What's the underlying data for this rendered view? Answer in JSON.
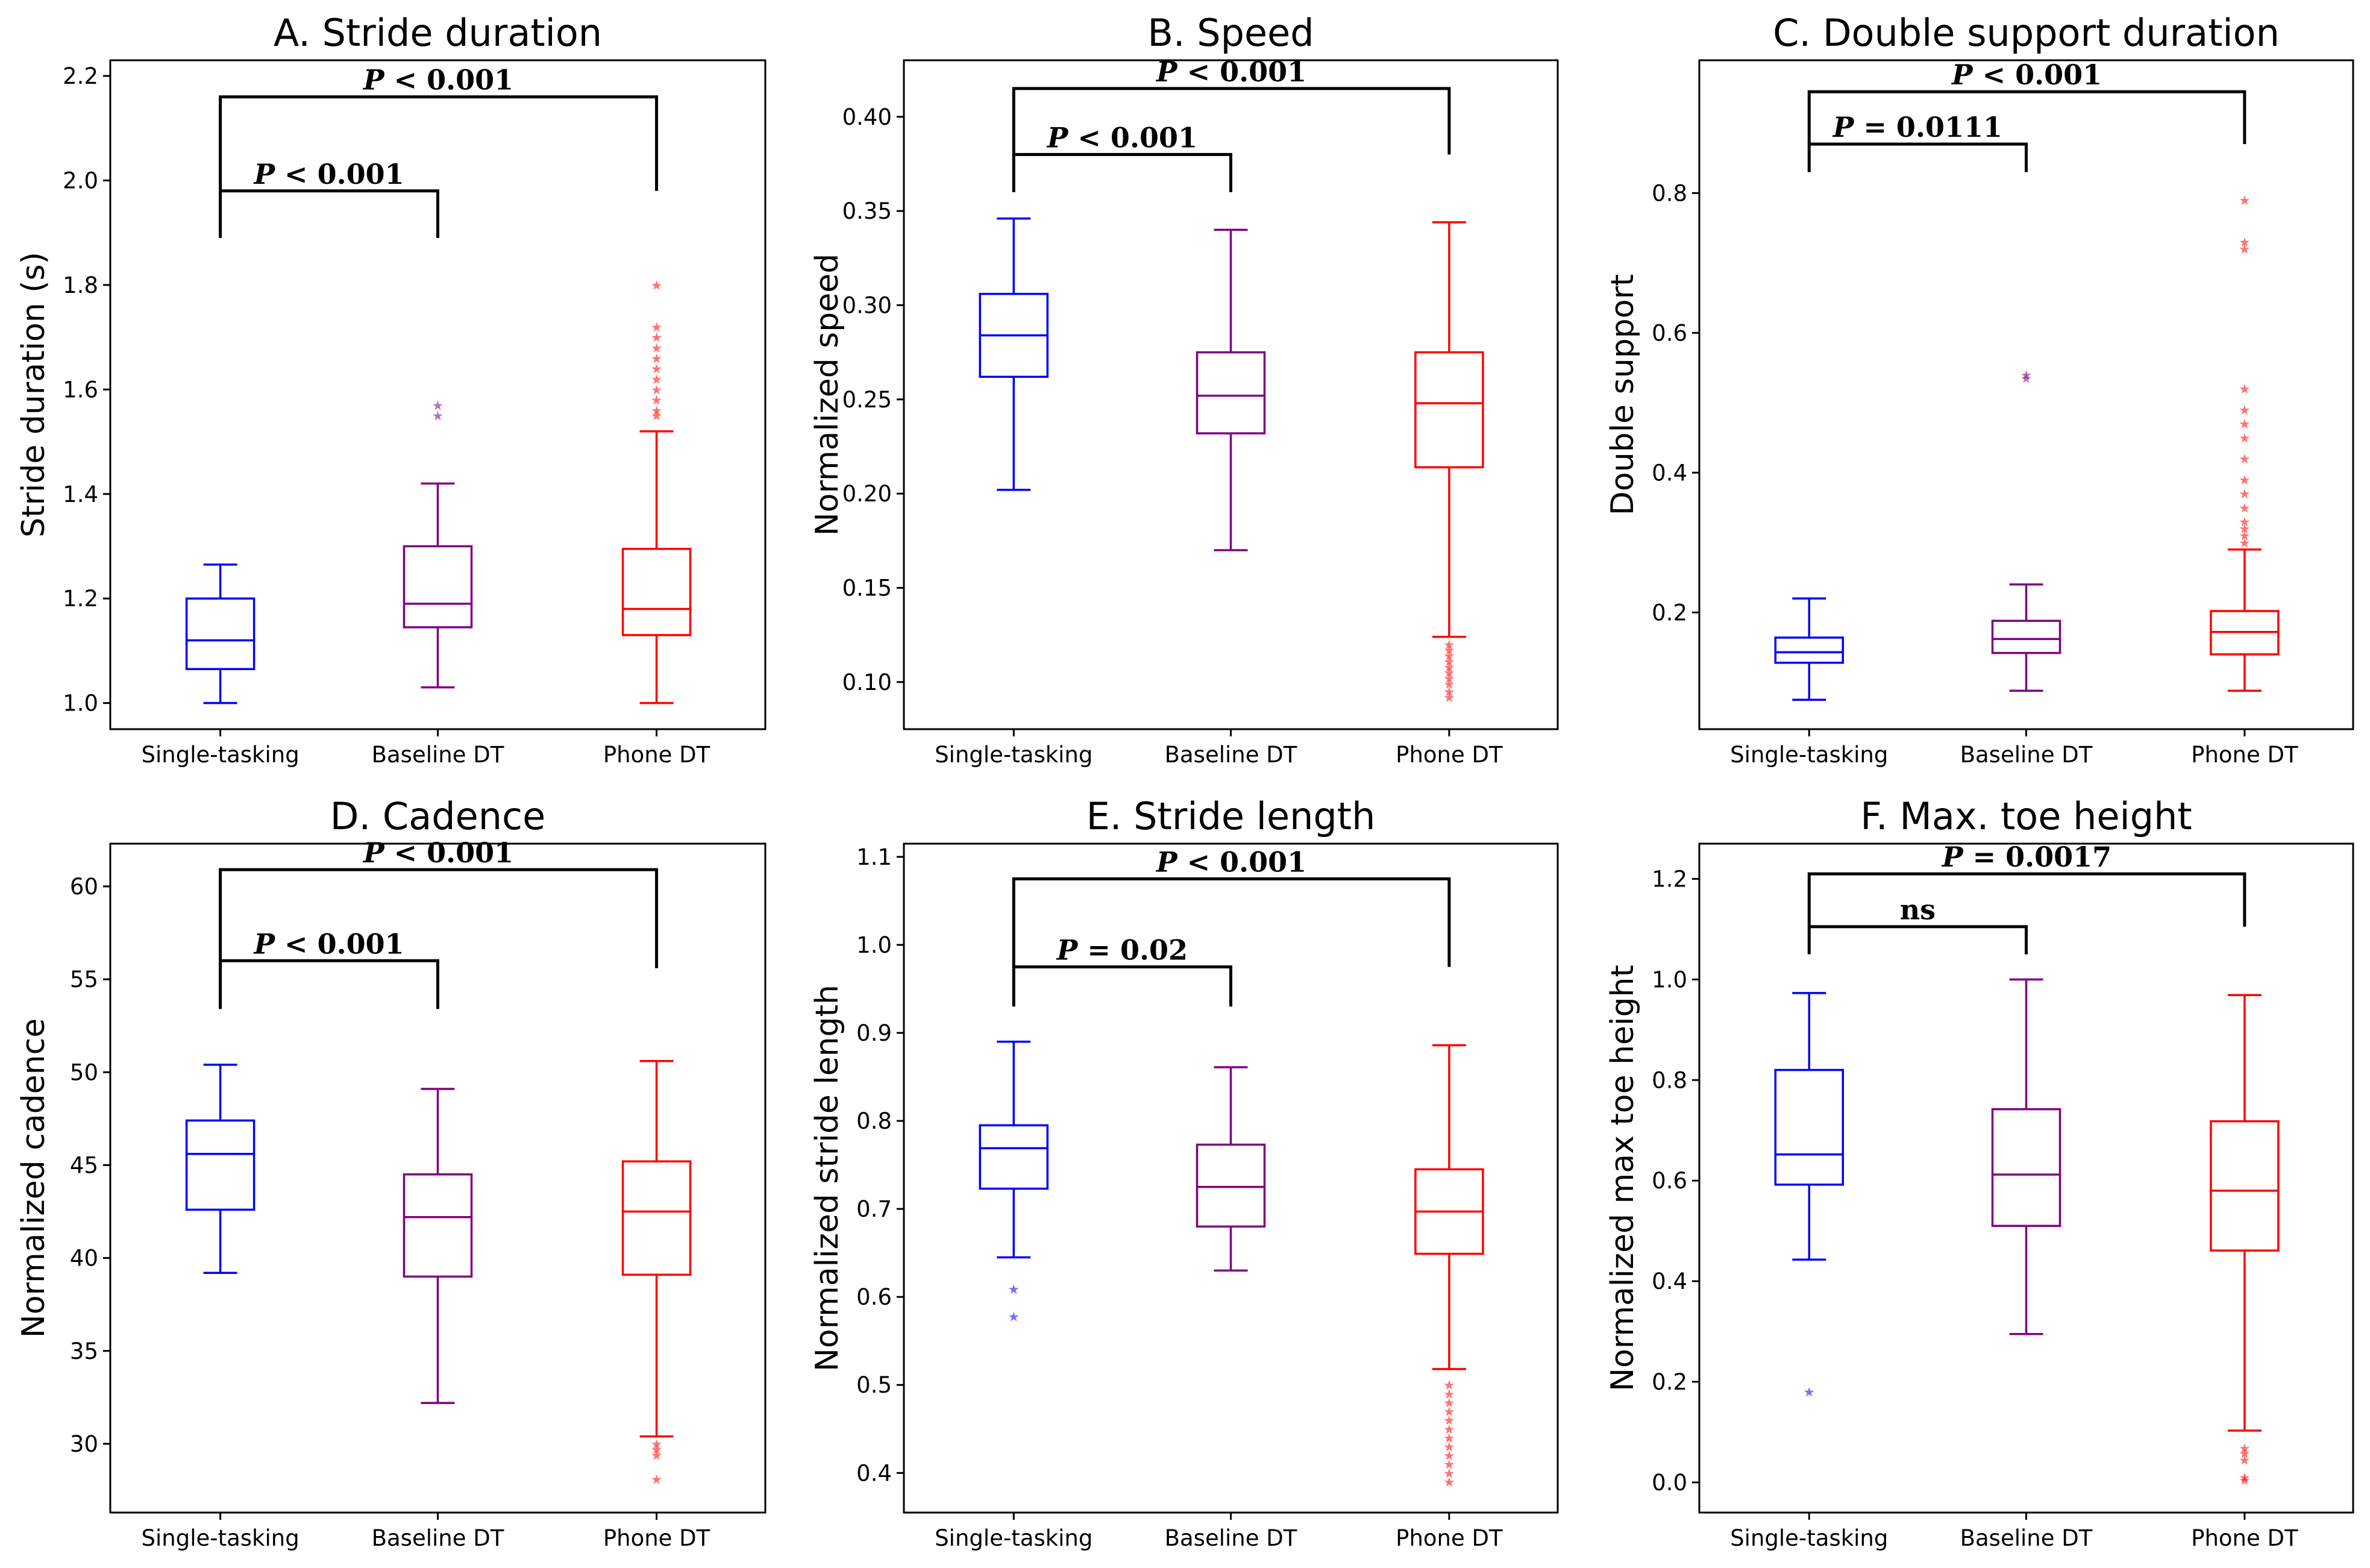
{
  "figure": {
    "groups": [
      "Single-tasking",
      "Baseline DT",
      "Phone DT"
    ]
  },
  "colors": {
    "Single-tasking": "#0000ff",
    "Baseline DT": "#800080",
    "Phone DT": "#ff0000"
  },
  "chart_data": [
    {
      "type": "box",
      "title": "A. Stride duration",
      "ylabel": "Stride duration (s)",
      "ylim": [
        0.95,
        2.23
      ],
      "yticks": [
        "1.0",
        "1.2",
        "1.4",
        "1.6",
        "1.8",
        "2.0",
        "2.2"
      ],
      "categories": [
        "Single-tasking",
        "Baseline DT",
        "Phone DT"
      ],
      "series": [
        {
          "name": "Single-tasking",
          "whisker_low": 1.0,
          "q1": 1.065,
          "median": 1.12,
          "q3": 1.2,
          "whisker_high": 1.265,
          "outliers": []
        },
        {
          "name": "Baseline DT",
          "whisker_low": 1.03,
          "q1": 1.145,
          "median": 1.19,
          "q3": 1.3,
          "whisker_high": 1.42,
          "outliers": [
            1.55,
            1.57
          ]
        },
        {
          "name": "Phone DT",
          "whisker_low": 1.0,
          "q1": 1.13,
          "median": 1.18,
          "q3": 1.295,
          "whisker_high": 1.52,
          "outliers": [
            1.55,
            1.56,
            1.58,
            1.6,
            1.62,
            1.64,
            1.66,
            1.68,
            1.7,
            1.72,
            1.8
          ]
        }
      ],
      "comparisons": [
        {
          "pair": [
            "Single-tasking",
            "Baseline DT"
          ],
          "label_p": "P",
          "label_rest": " < 0.001",
          "y": 1.98,
          "drop_left": 1.89,
          "drop_right": 1.89
        },
        {
          "pair": [
            "Single-tasking",
            "Phone DT"
          ],
          "label_p": "P",
          "label_rest": " < 0.001",
          "y": 2.16,
          "drop_left": 1.98,
          "drop_right": 1.98
        }
      ]
    },
    {
      "type": "box",
      "title": "B. Speed",
      "ylabel": "Normalized speed",
      "ylim": [
        0.075,
        0.43
      ],
      "yticks": [
        "0.10",
        "0.15",
        "0.20",
        "0.25",
        "0.30",
        "0.35",
        "0.40"
      ],
      "categories": [
        "Single-tasking",
        "Baseline DT",
        "Phone DT"
      ],
      "series": [
        {
          "name": "Single-tasking",
          "whisker_low": 0.202,
          "q1": 0.262,
          "median": 0.284,
          "q3": 0.306,
          "whisker_high": 0.346,
          "outliers": []
        },
        {
          "name": "Baseline DT",
          "whisker_low": 0.17,
          "q1": 0.232,
          "median": 0.252,
          "q3": 0.275,
          "whisker_high": 0.34,
          "outliers": []
        },
        {
          "name": "Phone DT",
          "whisker_low": 0.124,
          "q1": 0.214,
          "median": 0.248,
          "q3": 0.275,
          "whisker_high": 0.344,
          "outliers": [
            0.092,
            0.095,
            0.099,
            0.102,
            0.105,
            0.108,
            0.111,
            0.114,
            0.117,
            0.12
          ]
        }
      ],
      "comparisons": [
        {
          "pair": [
            "Single-tasking",
            "Baseline DT"
          ],
          "label_p": "P",
          "label_rest": " < 0.001",
          "y": 0.38,
          "drop_left": 0.36,
          "drop_right": 0.36
        },
        {
          "pair": [
            "Single-tasking",
            "Phone DT"
          ],
          "label_p": "P",
          "label_rest": " < 0.001",
          "y": 0.415,
          "drop_left": 0.38,
          "drop_right": 0.38
        }
      ]
    },
    {
      "type": "box",
      "title": "C. Double support duration",
      "ylabel": "Double support",
      "ylim": [
        0.033,
        0.99
      ],
      "yticks": [
        "0.2",
        "0.4",
        "0.6",
        "0.8"
      ],
      "categories": [
        "Single-tasking",
        "Baseline DT",
        "Phone DT"
      ],
      "series": [
        {
          "name": "Single-tasking",
          "whisker_low": 0.075,
          "q1": 0.128,
          "median": 0.143,
          "q3": 0.164,
          "whisker_high": 0.22,
          "outliers": []
        },
        {
          "name": "Baseline DT",
          "whisker_low": 0.088,
          "q1": 0.142,
          "median": 0.162,
          "q3": 0.188,
          "whisker_high": 0.24,
          "outliers": [
            0.535,
            0.54
          ]
        },
        {
          "name": "Phone DT",
          "whisker_low": 0.088,
          "q1": 0.14,
          "median": 0.172,
          "q3": 0.202,
          "whisker_high": 0.29,
          "outliers": [
            0.3,
            0.31,
            0.32,
            0.33,
            0.35,
            0.37,
            0.39,
            0.42,
            0.45,
            0.47,
            0.49,
            0.52,
            0.72,
            0.73,
            0.79
          ]
        }
      ],
      "comparisons": [
        {
          "pair": [
            "Single-tasking",
            "Baseline DT"
          ],
          "label_p": "P",
          "label_rest": " = 0.0111",
          "y": 0.87,
          "drop_left": 0.83,
          "drop_right": 0.83
        },
        {
          "pair": [
            "Single-tasking",
            "Phone DT"
          ],
          "label_p": "P",
          "label_rest": " < 0.001",
          "y": 0.945,
          "drop_left": 0.87,
          "drop_right": 0.87
        }
      ]
    },
    {
      "type": "box",
      "title": "D. Cadence",
      "ylabel": "Normalized cadence",
      "ylim": [
        26.3,
        62.3
      ],
      "yticks": [
        "30",
        "35",
        "40",
        "45",
        "50",
        "55",
        "60"
      ],
      "categories": [
        "Single-tasking",
        "Baseline DT",
        "Phone DT"
      ],
      "series": [
        {
          "name": "Single-tasking",
          "whisker_low": 39.2,
          "q1": 42.6,
          "median": 45.6,
          "q3": 47.4,
          "whisker_high": 50.4,
          "outliers": []
        },
        {
          "name": "Baseline DT",
          "whisker_low": 32.2,
          "q1": 39.0,
          "median": 42.2,
          "q3": 44.5,
          "whisker_high": 49.1,
          "outliers": []
        },
        {
          "name": "Phone DT",
          "whisker_low": 30.4,
          "q1": 39.1,
          "median": 42.5,
          "q3": 45.2,
          "whisker_high": 50.6,
          "outliers": [
            28.1,
            29.4,
            29.7,
            30.0
          ]
        }
      ],
      "comparisons": [
        {
          "pair": [
            "Single-tasking",
            "Baseline DT"
          ],
          "label_p": "P",
          "label_rest": " < 0.001",
          "y": 56.0,
          "drop_left": 53.4,
          "drop_right": 53.4
        },
        {
          "pair": [
            "Single-tasking",
            "Phone DT"
          ],
          "label_p": "P",
          "label_rest": " < 0.001",
          "y": 60.9,
          "drop_left": 55.6,
          "drop_right": 55.6
        }
      ]
    },
    {
      "type": "box",
      "title": "E. Stride length",
      "ylabel": "Normalized stride length",
      "ylim": [
        0.355,
        1.115
      ],
      "yticks": [
        "0.4",
        "0.5",
        "0.6",
        "0.7",
        "0.8",
        "0.9",
        "1.0",
        "1.1"
      ],
      "categories": [
        "Single-tasking",
        "Baseline DT",
        "Phone DT"
      ],
      "series": [
        {
          "name": "Single-tasking",
          "whisker_low": 0.645,
          "q1": 0.723,
          "median": 0.769,
          "q3": 0.795,
          "whisker_high": 0.89,
          "outliers": [
            0.578,
            0.609
          ]
        },
        {
          "name": "Baseline DT",
          "whisker_low": 0.63,
          "q1": 0.68,
          "median": 0.725,
          "q3": 0.773,
          "whisker_high": 0.861,
          "outliers": []
        },
        {
          "name": "Phone DT",
          "whisker_low": 0.518,
          "q1": 0.649,
          "median": 0.697,
          "q3": 0.745,
          "whisker_high": 0.886,
          "outliers": [
            0.39,
            0.4,
            0.41,
            0.42,
            0.43,
            0.44,
            0.45,
            0.46,
            0.47,
            0.48,
            0.49,
            0.5
          ]
        }
      ],
      "comparisons": [
        {
          "pair": [
            "Single-tasking",
            "Baseline DT"
          ],
          "label_p": "P",
          "label_rest": " = 0.02",
          "y": 0.975,
          "drop_left": 0.93,
          "drop_right": 0.93
        },
        {
          "pair": [
            "Single-tasking",
            "Phone DT"
          ],
          "label_p": "P",
          "label_rest": " < 0.001",
          "y": 1.075,
          "drop_left": 0.975,
          "drop_right": 0.975
        }
      ]
    },
    {
      "type": "box",
      "title": "F. Max. toe height",
      "ylabel": "Normalized max toe height",
      "ylim": [
        -0.06,
        1.27
      ],
      "yticks": [
        "0.0",
        "0.2",
        "0.4",
        "0.6",
        "0.8",
        "1.0",
        "1.2"
      ],
      "categories": [
        "Single-tasking",
        "Baseline DT",
        "Phone DT"
      ],
      "series": [
        {
          "name": "Single-tasking",
          "whisker_low": 0.443,
          "q1": 0.592,
          "median": 0.652,
          "q3": 0.82,
          "whisker_high": 0.973,
          "outliers": [
            0.18
          ]
        },
        {
          "name": "Baseline DT",
          "whisker_low": 0.295,
          "q1": 0.51,
          "median": 0.612,
          "q3": 0.742,
          "whisker_high": 1.0,
          "outliers": []
        },
        {
          "name": "Phone DT",
          "whisker_low": 0.103,
          "q1": 0.461,
          "median": 0.58,
          "q3": 0.718,
          "whisker_high": 0.969,
          "outliers": [
            0.005,
            0.01,
            0.045,
            0.058,
            0.068
          ]
        }
      ],
      "comparisons": [
        {
          "pair": [
            "Single-tasking",
            "Baseline DT"
          ],
          "label_p": "",
          "label_rest": "ns",
          "y": 1.105,
          "drop_left": 1.05,
          "drop_right": 1.05
        },
        {
          "pair": [
            "Single-tasking",
            "Phone DT"
          ],
          "label_p": "P",
          "label_rest": " = 0.0017",
          "y": 1.21,
          "drop_left": 1.105,
          "drop_right": 1.105
        }
      ]
    }
  ]
}
